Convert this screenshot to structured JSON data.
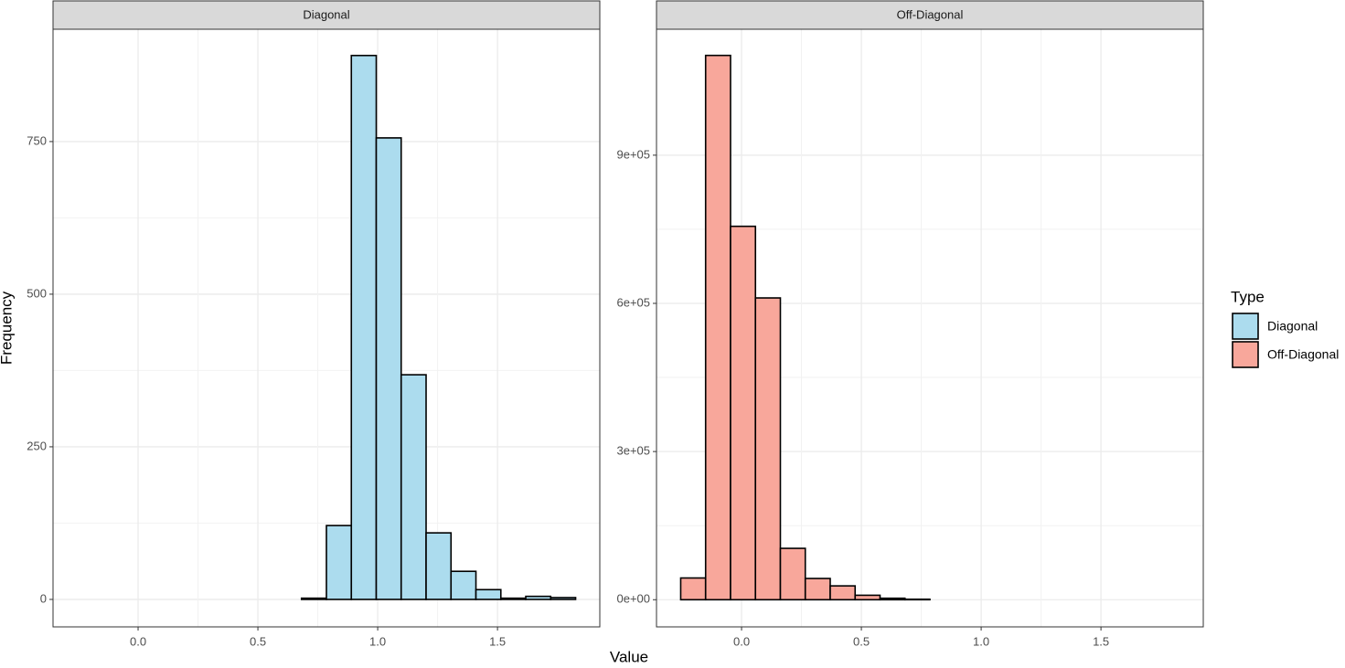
{
  "chart_data": [
    {
      "type": "histogram",
      "title": "Diagonal",
      "bins": [
        -0.254,
        -0.15,
        -0.046,
        0.058,
        0.162,
        0.266,
        0.37,
        0.474,
        0.578,
        0.682,
        0.786,
        0.89,
        0.994,
        1.098,
        1.202,
        1.306,
        1.41,
        1.514,
        1.618,
        1.722,
        1.826
      ],
      "series": [
        {
          "name": "Diagonal",
          "color": "#acdcee",
          "values": [
            0,
            0,
            0,
            0,
            0,
            0,
            0,
            0,
            0,
            2,
            121,
            891,
            756,
            368,
            109,
            46,
            16,
            2,
            5,
            3
          ]
        }
      ],
      "xlim": [
        -0.355,
        1.927
      ],
      "ylim": [
        -45,
        934
      ],
      "xticks": [
        {
          "value": 0,
          "label": "0.0"
        },
        {
          "value": 0.5,
          "label": "0.5"
        },
        {
          "value": 1,
          "label": "1.0"
        },
        {
          "value": 1.5,
          "label": "1.5"
        }
      ],
      "yticks": [
        0,
        250,
        500,
        750
      ],
      "grid": true,
      "minor_grid": true
    },
    {
      "type": "histogram",
      "title": "Off-Diagonal",
      "bins": [
        -0.254,
        -0.15,
        -0.046,
        0.058,
        0.162,
        0.266,
        0.37,
        0.474,
        0.578,
        0.682,
        0.786,
        0.89,
        0.994,
        1.098,
        1.202,
        1.306,
        1.41,
        1.514,
        1.618,
        1.722,
        1.826
      ],
      "series": [
        {
          "name": "Off-Diagonal",
          "color": "#f8a79b",
          "values": [
            44000,
            1102000,
            756000,
            611000,
            104000,
            43000,
            28000,
            9000,
            3000,
            1000,
            0,
            0,
            0,
            0,
            0,
            0,
            0,
            0,
            0,
            0
          ]
        }
      ],
      "xlim": [
        -0.355,
        1.927
      ],
      "ylim": [
        -55000,
        1155000
      ],
      "xticks": [
        {
          "value": 0,
          "label": "0.0"
        },
        {
          "value": 0.5,
          "label": "0.5"
        },
        {
          "value": 1,
          "label": "1.0"
        },
        {
          "value": 1.5,
          "label": "1.5"
        }
      ],
      "yticks": [
        {
          "value": 0,
          "label": "0e+00"
        },
        {
          "value": 300000,
          "label": "3e+05"
        },
        {
          "value": 600000,
          "label": "6e+05"
        },
        {
          "value": 900000,
          "label": "9e+05"
        }
      ],
      "grid": true,
      "minor_grid": true
    }
  ],
  "xlabel": "Value",
  "ylabel": "Frequency",
  "legend": {
    "title": "Type",
    "position": "right"
  }
}
